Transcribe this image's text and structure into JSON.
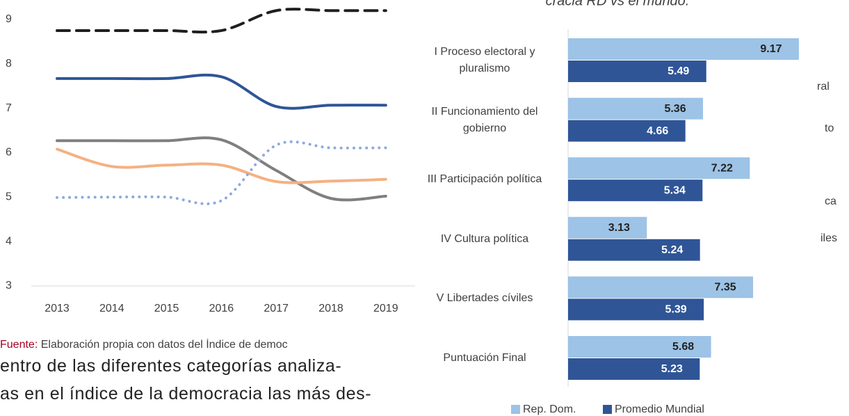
{
  "chart_data": [
    {
      "type": "line",
      "categories": [
        "2013",
        "2014",
        "2015",
        "2016",
        "2017",
        "2018",
        "2019"
      ],
      "ylim": [
        3,
        9
      ],
      "yticks": [
        3,
        4,
        5,
        6,
        7,
        8,
        9
      ],
      "series": [
        {
          "color": "#1f1f1f",
          "style": "dashed",
          "values": [
            8.75,
            8.75,
            8.75,
            8.75,
            9.2,
            9.2,
            9.2
          ]
        },
        {
          "color": "#2f5597",
          "style": "solid",
          "values": [
            7.67,
            7.67,
            7.67,
            7.71,
            7.04,
            7.07,
            7.07
          ]
        },
        {
          "color": "#7f7f7f",
          "style": "solid",
          "values": [
            6.27,
            6.27,
            6.27,
            6.29,
            5.6,
            4.97,
            5.02
          ]
        },
        {
          "color": "#f4b183",
          "style": "solid",
          "values": [
            6.08,
            5.69,
            5.72,
            5.72,
            5.35,
            5.36,
            5.4
          ]
        },
        {
          "color": "#8faadc",
          "style": "dotted",
          "values": [
            4.99,
            5.0,
            5.0,
            4.92,
            6.17,
            6.11,
            6.11
          ]
        }
      ],
      "legend_fragments": [
        "ral",
        "to",
        "ca",
        "iles"
      ]
    },
    {
      "type": "barh",
      "title": "cracia RD vs el mundo.",
      "categories": [
        "I Proceso electoral y pluralismo",
        "II Funcionamiento del gobierno",
        "III Participación política",
        "IV Cultura política",
        "V Libertades cíviles",
        "Puntuación Final"
      ],
      "xlim": [
        0,
        10
      ],
      "series": [
        {
          "name": "Rep. Dom.",
          "color": "#9dc3e6",
          "values": [
            9.17,
            5.36,
            7.22,
            3.13,
            7.35,
            5.68
          ]
        },
        {
          "name": "Promedio Mundial",
          "color": "#2f5597",
          "values": [
            5.49,
            4.66,
            5.34,
            5.24,
            5.39,
            5.23
          ]
        }
      ]
    }
  ],
  "source": {
    "label": "Fuente:",
    "text": "Elaboración propia con datos del Índice de democ"
  },
  "paragraph": [
    "entro de las diferentes categorías analiza-",
    "as en el índice de la democracia las más des-"
  ]
}
